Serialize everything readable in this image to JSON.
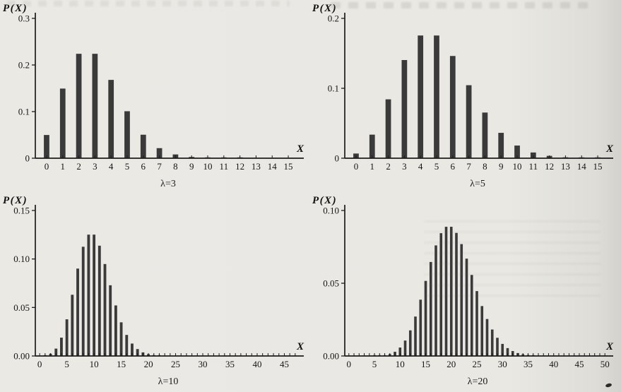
{
  "page": {
    "background": "#e9e8e3"
  },
  "chart_data": [
    {
      "type": "bar",
      "title": "λ=3",
      "ylabel": "P(X)",
      "xlabel": "X",
      "ylim": [
        0,
        0.3
      ],
      "yticks": [
        "0",
        "0.1",
        "0.2",
        "0.3"
      ],
      "xlim": [
        -0.7,
        15.7
      ],
      "tick_step": 1,
      "label_step": 1,
      "tick_max": 15,
      "bar_width": 0.34,
      "bar_color": "#3a3a3a",
      "x": [
        0,
        1,
        2,
        3,
        4,
        5,
        6,
        7,
        8,
        9,
        10,
        11,
        12,
        13,
        14,
        15
      ],
      "values": [
        0.0498,
        0.1494,
        0.224,
        0.224,
        0.168,
        0.1008,
        0.0504,
        0.0216,
        0.0081,
        0.0027,
        0.0008,
        0.0002,
        0.0001,
        0,
        0,
        0
      ]
    },
    {
      "type": "bar",
      "title": "λ=5",
      "ylabel": "P(X)",
      "xlabel": "X",
      "ylim": [
        0,
        0.2
      ],
      "yticks": [
        "0",
        "0.1",
        "0.2"
      ],
      "xlim": [
        -0.7,
        15.7
      ],
      "tick_step": 1,
      "label_step": 1,
      "tick_max": 15,
      "bar_width": 0.34,
      "bar_color": "#3a3a3a",
      "x": [
        0,
        1,
        2,
        3,
        4,
        5,
        6,
        7,
        8,
        9,
        10,
        11,
        12,
        13,
        14,
        15
      ],
      "values": [
        0.0067,
        0.0337,
        0.0842,
        0.1404,
        0.1755,
        0.1755,
        0.1462,
        0.1044,
        0.0653,
        0.0363,
        0.0181,
        0.0082,
        0.0034,
        0.0013,
        0.0005,
        0.0002
      ]
    },
    {
      "type": "bar",
      "title": "λ=10",
      "ylabel": "P(X)",
      "xlabel": "X",
      "ylim": [
        0,
        0.15
      ],
      "yticks": [
        "0.00",
        "0.05",
        "0.10",
        "0.15"
      ],
      "xlim": [
        -0.8,
        47.8
      ],
      "tick_step": 1,
      "label_step": 5,
      "tick_max": 47,
      "bar_width": 0.5,
      "bar_color": "#3a3a3a",
      "x": [
        0,
        1,
        2,
        3,
        4,
        5,
        6,
        7,
        8,
        9,
        10,
        11,
        12,
        13,
        14,
        15,
        16,
        17,
        18,
        19,
        20,
        21,
        22
      ],
      "values": [
        0,
        0.0005,
        0.0023,
        0.0076,
        0.0189,
        0.0378,
        0.0631,
        0.0901,
        0.1126,
        0.1251,
        0.1251,
        0.1137,
        0.0948,
        0.0729,
        0.0521,
        0.0347,
        0.0217,
        0.0128,
        0.0071,
        0.0037,
        0.0019,
        0.0009,
        0.0004
      ]
    },
    {
      "type": "bar",
      "title": "λ=20",
      "ylabel": "P(X)",
      "xlabel": "X",
      "ylim": [
        0,
        0.1
      ],
      "yticks": [
        "0.00",
        "0.05",
        "0.10"
      ],
      "xlim": [
        -0.8,
        50.8
      ],
      "tick_step": 1,
      "label_step": 5,
      "tick_max": 50,
      "bar_width": 0.5,
      "bar_color": "#3a3a3a",
      "x": [
        0,
        1,
        2,
        3,
        4,
        5,
        6,
        7,
        8,
        9,
        10,
        11,
        12,
        13,
        14,
        15,
        16,
        17,
        18,
        19,
        20,
        21,
        22,
        23,
        24,
        25,
        26,
        27,
        28,
        29,
        30,
        31,
        32,
        33,
        34,
        35,
        36
      ],
      "values": [
        0,
        0,
        0,
        0,
        0,
        0.0001,
        0.0002,
        0.0005,
        0.0013,
        0.0029,
        0.0058,
        0.0106,
        0.0176,
        0.0271,
        0.0387,
        0.0516,
        0.0646,
        0.076,
        0.0844,
        0.0888,
        0.0888,
        0.0846,
        0.0769,
        0.0669,
        0.0557,
        0.0446,
        0.0343,
        0.0254,
        0.0182,
        0.0125,
        0.0083,
        0.0054,
        0.0034,
        0.002,
        0.0012,
        0.0007,
        0.0004
      ]
    }
  ]
}
